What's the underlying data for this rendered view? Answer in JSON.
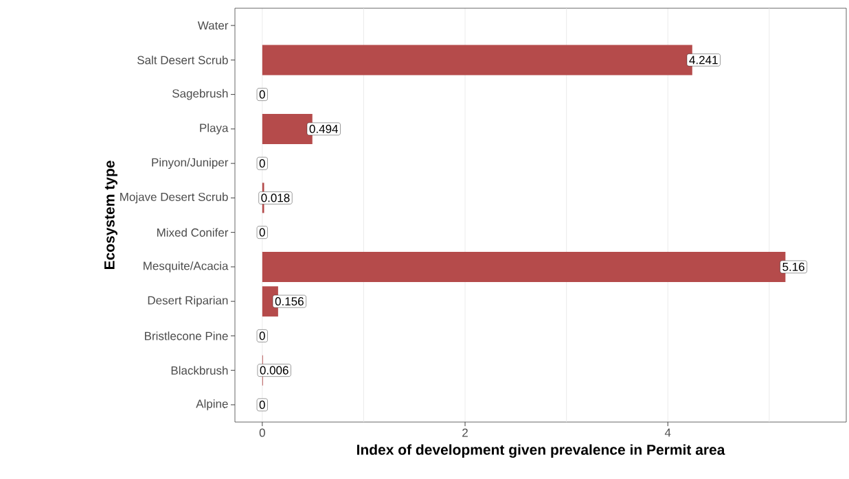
{
  "chart_data": {
    "type": "bar",
    "orientation": "horizontal",
    "xlabel": "Index of development given prevalence in Permit area",
    "ylabel": "Ecosystem type",
    "categories": [
      "Water",
      "Salt Desert Scrub",
      "Sagebrush",
      "Playa",
      "Pinyon/Juniper",
      "Mojave Desert Scrub",
      "Mixed Conifer",
      "Mesquite/Acacia",
      "Desert Riparian",
      "Bristlecone Pine",
      "Blackbrush",
      "Alpine"
    ],
    "values": [
      null,
      4.241,
      0,
      0.494,
      0,
      0.018,
      0,
      5.16,
      0.156,
      0,
      0.006,
      0
    ],
    "color": "#b54b4b",
    "data_labels": true,
    "grid": "x",
    "xlim": [
      -0.27,
      5.76
    ],
    "xticks": [
      0,
      {
        "value": 1,
        "label": null
      },
      2,
      {
        "value": 3,
        "label": null
      },
      4,
      {
        "value": 5,
        "label": null
      }
    ]
  }
}
